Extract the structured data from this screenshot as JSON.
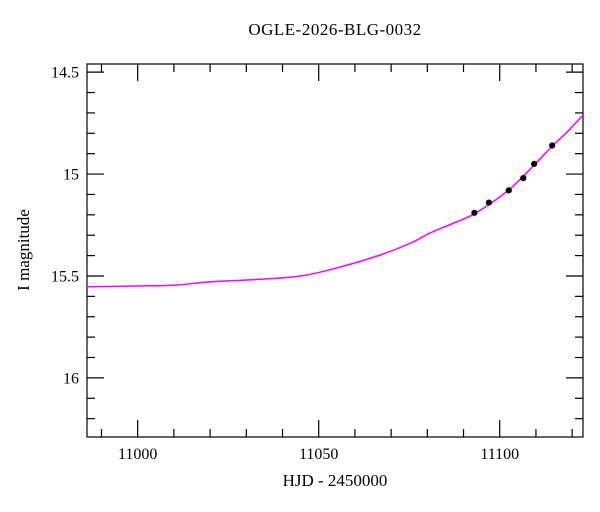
{
  "figure": {
    "title": "OGLE-2026-BLG-0032",
    "xlabel": "HJD - 2450000",
    "ylabel": "I magnitude"
  },
  "chart_data": {
    "type": "line",
    "title": "OGLE-2026-BLG-0032",
    "xlabel": "HJD - 2450000",
    "ylabel": "I magnitude",
    "xlim": [
      10986,
      11123
    ],
    "ylim_top": 14.46,
    "ylim_bottom": 16.29,
    "y_axis_inverted": true,
    "grid": false,
    "legend": "none",
    "x_major_ticks": [
      11000,
      11050,
      11100
    ],
    "x_minor_step": 10,
    "y_major_ticks": [
      14.5,
      15,
      15.5,
      16
    ],
    "y_minor_step": 0.1,
    "colors": {
      "model_curve": "#ff00ff",
      "data_points": "#000000",
      "axes": "#000000",
      "background": "#ffffff"
    },
    "series": [
      {
        "name": "microlensing-model",
        "style": "line",
        "color": "#ff00ff",
        "points": [
          [
            10986,
            15.553
          ],
          [
            11000,
            15.549
          ],
          [
            11010,
            15.545
          ],
          [
            11020,
            15.529
          ],
          [
            11032,
            15.518
          ],
          [
            11045,
            15.5
          ],
          [
            11056,
            15.456
          ],
          [
            11067,
            15.397
          ],
          [
            11075.5,
            15.338
          ],
          [
            11081,
            15.287
          ],
          [
            11088,
            15.235
          ],
          [
            11093.5,
            15.19
          ],
          [
            11102.5,
            15.078
          ],
          [
            11109.5,
            14.956
          ],
          [
            11114.5,
            14.863
          ],
          [
            11118.5,
            14.796
          ],
          [
            11123,
            14.711
          ]
        ]
      },
      {
        "name": "observations",
        "style": "scatter",
        "color": "#000000",
        "points": [
          [
            11093,
            15.19
          ],
          [
            11097,
            15.14
          ],
          [
            11102.5,
            15.08
          ],
          [
            11106.5,
            15.02
          ],
          [
            11109.5,
            14.95
          ],
          [
            11114.5,
            14.86
          ]
        ]
      }
    ]
  }
}
